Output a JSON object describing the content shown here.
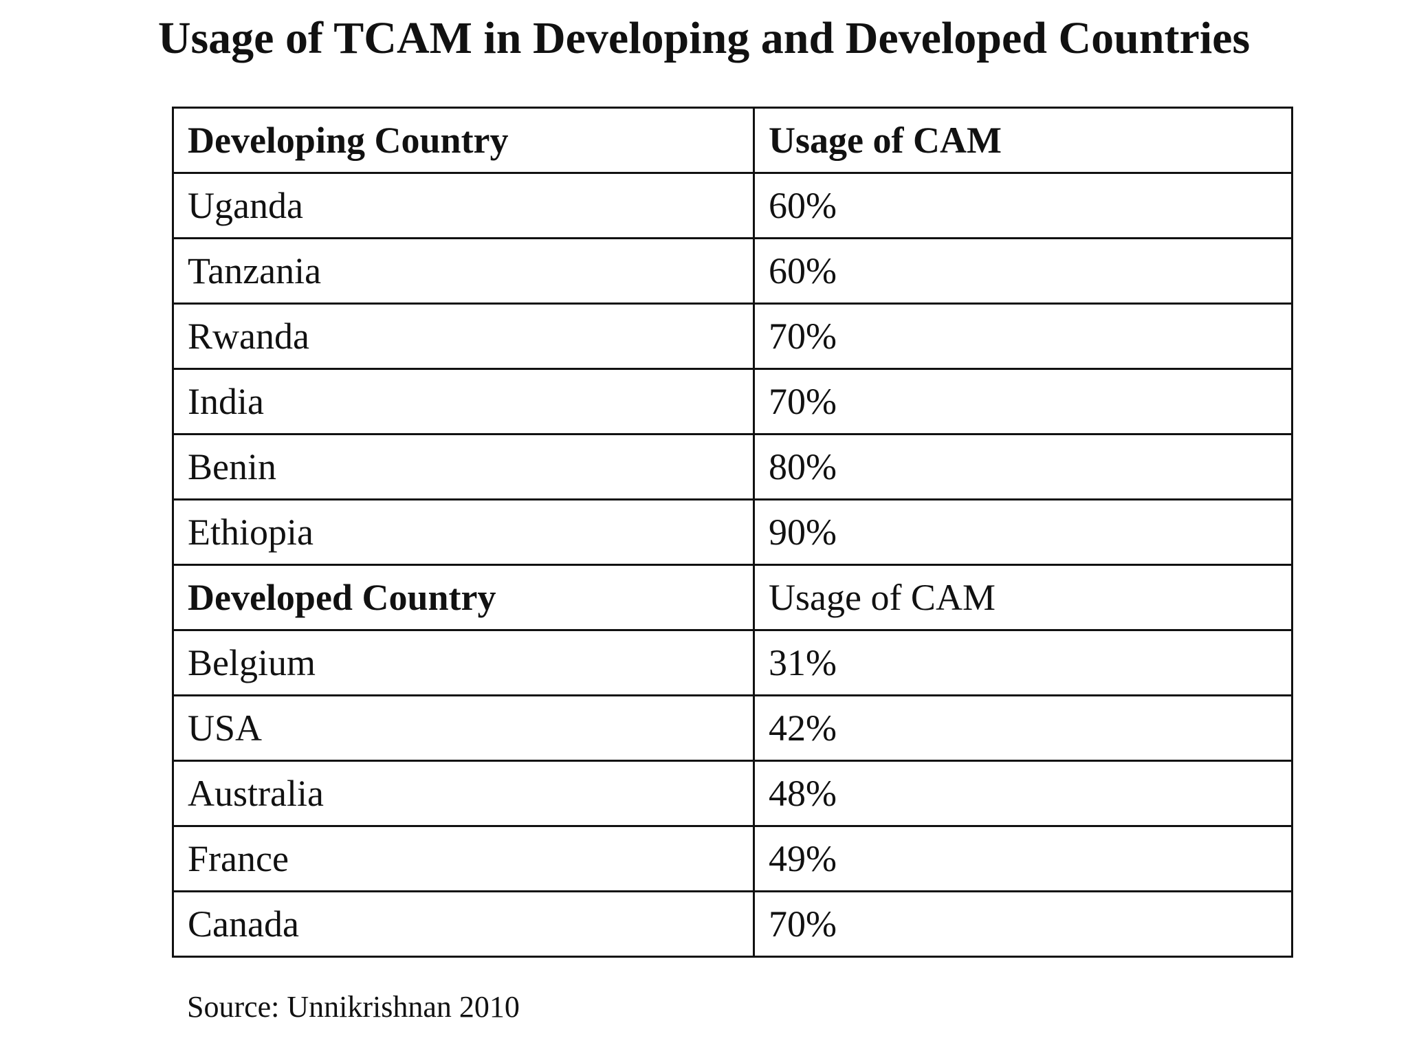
{
  "chart_data": {
    "type": "table",
    "title": "Usage of TCAM in Developing and Developed Countries",
    "sections": [
      {
        "header": [
          "Developing Country",
          "Usage of CAM"
        ],
        "header_bold": [
          true,
          true
        ],
        "rows": [
          [
            "Uganda",
            "60%"
          ],
          [
            "Tanzania",
            "60%"
          ],
          [
            "Rwanda",
            "70%"
          ],
          [
            "India",
            "70%"
          ],
          [
            "Benin",
            "80%"
          ],
          [
            "Ethiopia",
            "90%"
          ]
        ]
      },
      {
        "header": [
          "Developed Country",
          "Usage of CAM"
        ],
        "header_bold": [
          true,
          false
        ],
        "rows": [
          [
            "Belgium",
            "31%"
          ],
          [
            "USA",
            "42%"
          ],
          [
            "Australia",
            "48%"
          ],
          [
            "France",
            "49%"
          ],
          [
            "Canada",
            "70%"
          ]
        ]
      }
    ],
    "source": "Source: Unnikrishnan 2010"
  }
}
